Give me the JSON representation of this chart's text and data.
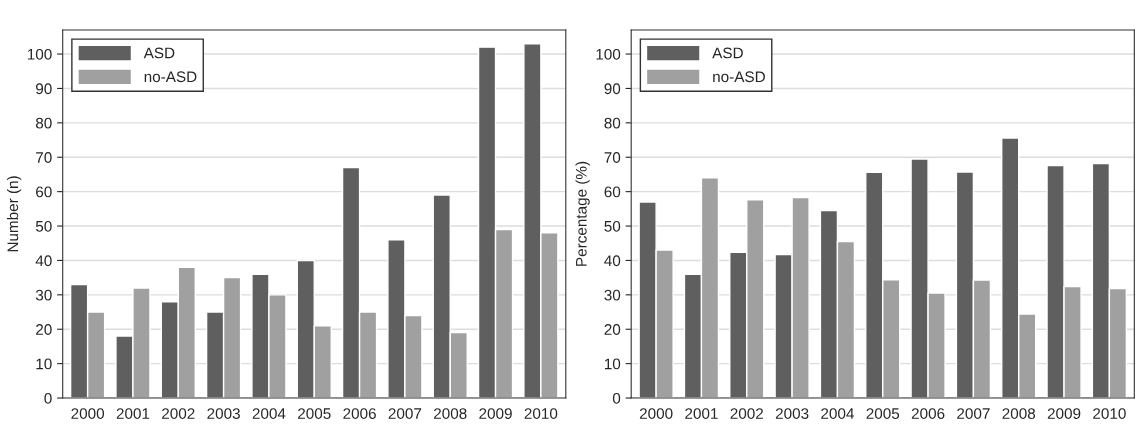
{
  "chart_data": [
    {
      "type": "bar",
      "ylabel": "Number (n)",
      "categories": [
        "2000",
        "2001",
        "2002",
        "2003",
        "2004",
        "2005",
        "2006",
        "2007",
        "2008",
        "2009",
        "2010"
      ],
      "series": [
        {
          "name": "ASD",
          "color": "#5f5f5f",
          "values": [
            33,
            18,
            28,
            25,
            36,
            40,
            67,
            46,
            59,
            102,
            103
          ]
        },
        {
          "name": "no-ASD",
          "color": "#a0a0a0",
          "values": [
            25,
            32,
            38,
            35,
            30,
            21,
            25,
            24,
            19,
            49,
            48
          ]
        }
      ],
      "ylim": [
        0,
        107
      ],
      "yticks": [
        0,
        10,
        20,
        30,
        40,
        50,
        60,
        70,
        80,
        90,
        100
      ],
      "grid": "y",
      "legend": "top left"
    },
    {
      "type": "bar",
      "ylabel": "Percentage (%)",
      "categories": [
        "2000",
        "2001",
        "2002",
        "2003",
        "2004",
        "2005",
        "2006",
        "2007",
        "2008",
        "2009",
        "2010"
      ],
      "series": [
        {
          "name": "ASD",
          "color": "#5f5f5f",
          "values": [
            57,
            36,
            42.4,
            41.7,
            54.5,
            65.6,
            69.5,
            65.7,
            75.6,
            67.6,
            68.2
          ]
        },
        {
          "name": "no-ASD",
          "color": "#a0a0a0",
          "values": [
            43,
            64,
            57.6,
            58.3,
            45.5,
            34.4,
            30.5,
            34.3,
            24.4,
            32.4,
            31.8
          ]
        }
      ],
      "ylim": [
        0,
        107
      ],
      "yticks": [
        0,
        10,
        20,
        30,
        40,
        50,
        60,
        70,
        80,
        90,
        100
      ],
      "grid": "y",
      "legend": "top left"
    }
  ]
}
